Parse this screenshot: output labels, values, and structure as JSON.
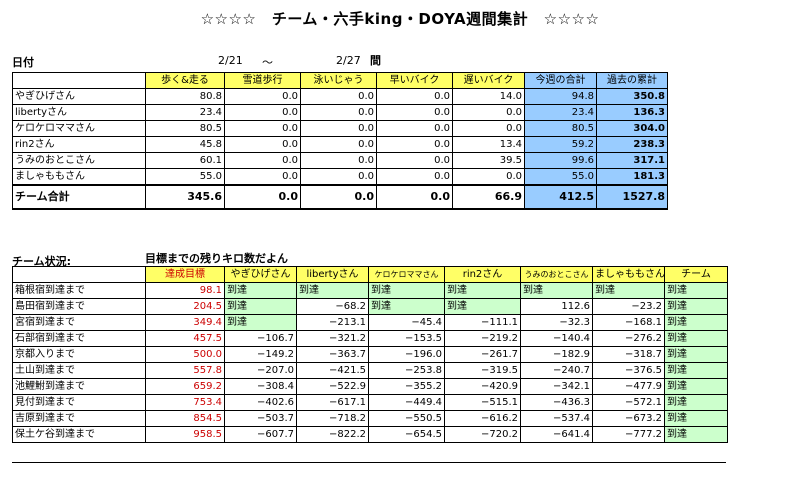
{
  "title": "☆☆☆☆　チーム・六手king・DOYA週間集計　☆☆☆☆",
  "date_label": "日付",
  "date_from": "2/21",
  "date_tilde": "～",
  "date_to": "2/27",
  "date_suffix": "間",
  "weekly": {
    "headers": [
      "",
      "歩く&走る",
      "雪道歩行",
      "泳いじゃう",
      "早いバイク",
      "遅いバイク",
      "今週の合計",
      "過去の累計"
    ],
    "rows": [
      {
        "name": "やぎひげさん",
        "vals": [
          "80.8",
          "0.0",
          "0.0",
          "0.0",
          "14.0"
        ],
        "week": "94.8",
        "cum": "350.8"
      },
      {
        "name": "libertyさん",
        "vals": [
          "23.4",
          "0.0",
          "0.0",
          "0.0",
          "0.0"
        ],
        "week": "23.4",
        "cum": "136.3"
      },
      {
        "name": "ケロケロママさん",
        "vals": [
          "80.5",
          "0.0",
          "0.0",
          "0.0",
          "0.0"
        ],
        "week": "80.5",
        "cum": "304.0"
      },
      {
        "name": "rin2さん",
        "vals": [
          "45.8",
          "0.0",
          "0.0",
          "0.0",
          "13.4"
        ],
        "week": "59.2",
        "cum": "238.3"
      },
      {
        "name": "うみのおとこさん",
        "vals": [
          "60.1",
          "0.0",
          "0.0",
          "0.0",
          "39.5"
        ],
        "week": "99.6",
        "cum": "317.1"
      },
      {
        "name": "ましゃももさん",
        "vals": [
          "55.0",
          "0.0",
          "0.0",
          "0.0",
          "0.0"
        ],
        "week": "55.0",
        "cum": "181.3"
      }
    ],
    "total": {
      "name": "チーム合計",
      "vals": [
        "345.6",
        "0.0",
        "0.0",
        "0.0",
        "66.9"
      ],
      "week": "412.5",
      "cum": "1527.8"
    }
  },
  "status_label": "チーム状況:",
  "status_sub": "目標までの残りキロ数だよん",
  "status": {
    "headers": [
      "",
      "達成目標",
      "やぎひげさん",
      "libertyさん",
      "ケロケロママさん",
      "rin2さん",
      "うみのおとこさん",
      "ましゃももさん",
      "チーム"
    ],
    "rows": [
      {
        "name": "箱根宿到達まで",
        "goal": "98.1",
        "cells": [
          "到達",
          "到達",
          "到達",
          "到達",
          "到達",
          "到達",
          "到達"
        ]
      },
      {
        "name": "島田宿到達まで",
        "goal": "204.5",
        "cells": [
          "到達",
          "−68.2",
          "到達",
          "到達",
          "112.6",
          "−23.2",
          "到達"
        ]
      },
      {
        "name": "宮宿到達まで",
        "goal": "349.4",
        "cells": [
          "到達",
          "−213.1",
          "−45.4",
          "−111.1",
          "−32.3",
          "−168.1",
          "到達"
        ]
      },
      {
        "name": "石部宿到達まで",
        "goal": "457.5",
        "cells": [
          "−106.7",
          "−321.2",
          "−153.5",
          "−219.2",
          "−140.4",
          "−276.2",
          "到達"
        ]
      },
      {
        "name": "京都入りまで",
        "goal": "500.0",
        "cells": [
          "−149.2",
          "−363.7",
          "−196.0",
          "−261.7",
          "−182.9",
          "−318.7",
          "到達"
        ]
      },
      {
        "name": "土山到達まで",
        "goal": "557.8",
        "cells": [
          "−207.0",
          "−421.5",
          "−253.8",
          "−319.5",
          "−240.7",
          "−376.5",
          "到達"
        ]
      },
      {
        "name": "池鯉鮒到達まで",
        "goal": "659.2",
        "cells": [
          "−308.4",
          "−522.9",
          "−355.2",
          "−420.9",
          "−342.1",
          "−477.9",
          "到達"
        ]
      },
      {
        "name": "見付到達まで",
        "goal": "753.4",
        "cells": [
          "−402.6",
          "−617.1",
          "−449.4",
          "−515.1",
          "−436.3",
          "−572.1",
          "到達"
        ]
      },
      {
        "name": "吉原到達まで",
        "goal": "854.5",
        "cells": [
          "−503.7",
          "−718.2",
          "−550.5",
          "−616.2",
          "−537.4",
          "−673.2",
          "到達"
        ]
      },
      {
        "name": "保土ケ谷到達まで",
        "goal": "958.5",
        "cells": [
          "−607.7",
          "−822.2",
          "−654.5",
          "−720.2",
          "−641.4",
          "−777.2",
          "到達"
        ]
      }
    ]
  },
  "colors": {
    "header_yellow": "#ffff66",
    "blue_fill": "#99ccff",
    "green_fill": "#ccffcc",
    "goal_red": "#cc0000"
  }
}
